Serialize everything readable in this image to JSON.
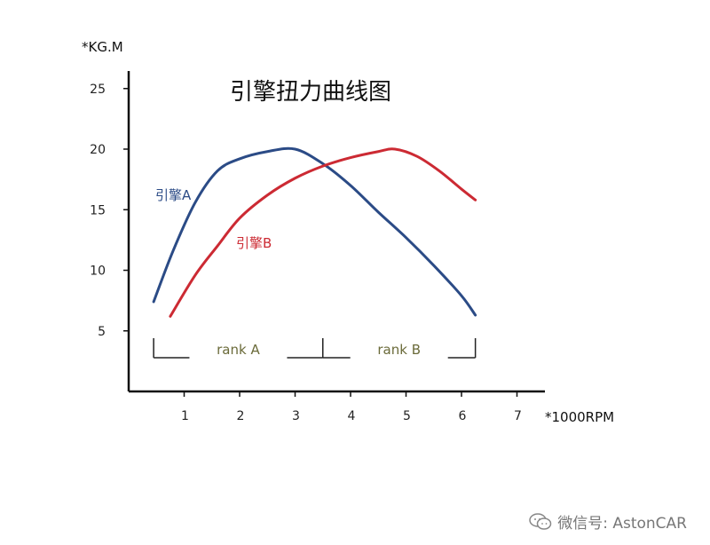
{
  "chart_data": {
    "type": "line",
    "title": "引擎扭力曲线图",
    "xlabel": "*1000RPM",
    "ylabel": "*KG.M",
    "xlim": [
      0,
      7.5
    ],
    "ylim": [
      0,
      26
    ],
    "x_ticks": [
      1,
      2,
      3,
      4,
      5,
      6,
      7
    ],
    "y_ticks": [
      5,
      10,
      15,
      20,
      25
    ],
    "grid": false,
    "series": [
      {
        "name": "引擎A",
        "color": "#2b4b86",
        "points": [
          [
            0.45,
            7.4
          ],
          [
            0.8,
            11.6
          ],
          [
            1.2,
            15.6
          ],
          [
            1.6,
            18.2
          ],
          [
            2.0,
            19.2
          ],
          [
            2.5,
            19.8
          ],
          [
            3.0,
            20.0
          ],
          [
            3.5,
            18.8
          ],
          [
            4.0,
            17.0
          ],
          [
            4.5,
            14.8
          ],
          [
            5.0,
            12.7
          ],
          [
            5.5,
            10.4
          ],
          [
            6.0,
            7.9
          ],
          [
            6.25,
            6.3
          ]
        ]
      },
      {
        "name": "引擎B",
        "color": "#cc2a33",
        "points": [
          [
            0.75,
            6.2
          ],
          [
            1.2,
            9.6
          ],
          [
            1.6,
            12.0
          ],
          [
            2.0,
            14.3
          ],
          [
            2.5,
            16.2
          ],
          [
            3.0,
            17.6
          ],
          [
            3.5,
            18.6
          ],
          [
            4.0,
            19.3
          ],
          [
            4.5,
            19.8
          ],
          [
            4.8,
            20.0
          ],
          [
            5.2,
            19.4
          ],
          [
            5.6,
            18.2
          ],
          [
            6.0,
            16.7
          ],
          [
            6.25,
            15.8
          ]
        ]
      }
    ],
    "annotations": [
      {
        "text": "rank A",
        "x_range": [
          0.45,
          3.5
        ]
      },
      {
        "text": "rank B",
        "x_range": [
          3.5,
          6.25
        ]
      }
    ]
  },
  "watermark": {
    "text": "微信号: AstonCAR",
    "icon": "wechat-icon"
  }
}
